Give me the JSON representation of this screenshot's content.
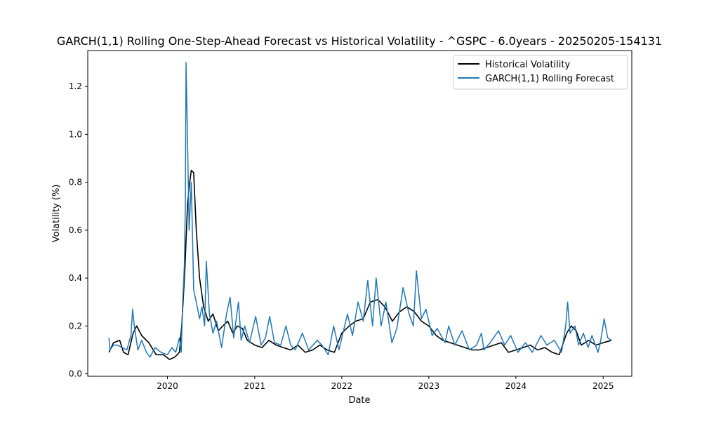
{
  "chart_data": {
    "type": "line",
    "title": "GARCH(1,1) Rolling One-Step-Ahead Forecast vs Historical Volatility - ^GSPC - 6.0years - 20250205-154131",
    "xlabel": "Date",
    "ylabel": "Volatility (%)",
    "xlim": [
      "2019-02-01",
      "2025-05-01"
    ],
    "ylim": [
      -0.01,
      1.35
    ],
    "x_ticks": [
      "2020-01-01",
      "2021-01-01",
      "2022-01-01",
      "2023-01-01",
      "2024-01-01",
      "2025-01-01"
    ],
    "x_tick_labels": [
      "2020",
      "2021",
      "2022",
      "2023",
      "2024",
      "2025"
    ],
    "y_ticks": [
      0.0,
      0.2,
      0.4,
      0.6,
      0.8,
      1.0,
      1.2
    ],
    "y_tick_labels": [
      "0.0",
      "0.2",
      "0.4",
      "0.6",
      "0.8",
      "1.0",
      "1.2"
    ],
    "grid": false,
    "legend": {
      "position": "top-right"
    },
    "series": [
      {
        "name": "Historical Volatility",
        "color": "#000000",
        "x": [
          "2019-05-01",
          "2019-05-20",
          "2019-06-15",
          "2019-07-01",
          "2019-07-20",
          "2019-08-10",
          "2019-08-25",
          "2019-09-15",
          "2019-10-15",
          "2019-11-15",
          "2019-12-15",
          "2020-01-10",
          "2020-02-01",
          "2020-02-20",
          "2020-03-01",
          "2020-03-15",
          "2020-03-25",
          "2020-04-01",
          "2020-04-10",
          "2020-04-20",
          "2020-05-01",
          "2020-05-15",
          "2020-06-01",
          "2020-06-20",
          "2020-07-10",
          "2020-08-01",
          "2020-08-20",
          "2020-09-10",
          "2020-10-01",
          "2020-10-20",
          "2020-11-10",
          "2020-12-01",
          "2021-01-01",
          "2021-02-01",
          "2021-03-01",
          "2021-04-01",
          "2021-05-01",
          "2021-06-01",
          "2021-07-01",
          "2021-08-01",
          "2021-09-01",
          "2021-10-01",
          "2021-11-01",
          "2021-12-01",
          "2022-01-01",
          "2022-02-01",
          "2022-03-01",
          "2022-04-01",
          "2022-05-01",
          "2022-06-01",
          "2022-07-01",
          "2022-08-01",
          "2022-09-01",
          "2022-10-01",
          "2022-11-01",
          "2022-12-01",
          "2023-01-01",
          "2023-02-01",
          "2023-03-01",
          "2023-04-01",
          "2023-05-01",
          "2023-06-01",
          "2023-07-01",
          "2023-08-01",
          "2023-09-01",
          "2023-10-01",
          "2023-11-01",
          "2023-12-01",
          "2024-01-01",
          "2024-02-01",
          "2024-03-01",
          "2024-04-01",
          "2024-05-01",
          "2024-06-01",
          "2024-07-01",
          "2024-08-01",
          "2024-08-20",
          "2024-09-10",
          "2024-10-01",
          "2024-11-01",
          "2024-12-01",
          "2025-01-01",
          "2025-02-05"
        ],
        "y": [
          0.09,
          0.13,
          0.14,
          0.09,
          0.08,
          0.17,
          0.2,
          0.16,
          0.13,
          0.08,
          0.08,
          0.06,
          0.07,
          0.09,
          0.2,
          0.45,
          0.7,
          0.78,
          0.85,
          0.84,
          0.6,
          0.4,
          0.28,
          0.22,
          0.25,
          0.18,
          0.2,
          0.22,
          0.17,
          0.2,
          0.19,
          0.14,
          0.12,
          0.11,
          0.14,
          0.12,
          0.11,
          0.1,
          0.12,
          0.09,
          0.1,
          0.12,
          0.1,
          0.09,
          0.17,
          0.2,
          0.22,
          0.23,
          0.3,
          0.31,
          0.28,
          0.22,
          0.26,
          0.28,
          0.26,
          0.22,
          0.2,
          0.16,
          0.14,
          0.13,
          0.12,
          0.11,
          0.1,
          0.1,
          0.11,
          0.12,
          0.13,
          0.09,
          0.1,
          0.11,
          0.12,
          0.1,
          0.11,
          0.09,
          0.08,
          0.17,
          0.2,
          0.18,
          0.12,
          0.14,
          0.12,
          0.13,
          0.14
        ]
      },
      {
        "name": "GARCH(1,1) Rolling Forecast",
        "color": "#1f77b4",
        "x": [
          "2019-05-01",
          "2019-05-05",
          "2019-05-20",
          "2019-06-05",
          "2019-06-25",
          "2019-07-15",
          "2019-08-01",
          "2019-08-08",
          "2019-08-15",
          "2019-08-30",
          "2019-09-15",
          "2019-10-05",
          "2019-10-20",
          "2019-11-10",
          "2019-12-05",
          "2020-01-01",
          "2020-01-20",
          "2020-02-05",
          "2020-02-20",
          "2020-02-28",
          "2020-03-05",
          "2020-03-12",
          "2020-03-16",
          "2020-03-19",
          "2020-03-25",
          "2020-04-01",
          "2020-04-10",
          "2020-04-20",
          "2020-05-01",
          "2020-05-15",
          "2020-05-25",
          "2020-06-05",
          "2020-06-12",
          "2020-06-25",
          "2020-07-10",
          "2020-07-25",
          "2020-08-15",
          "2020-09-05",
          "2020-09-20",
          "2020-10-05",
          "2020-10-25",
          "2020-11-05",
          "2020-11-20",
          "2020-12-10",
          "2021-01-05",
          "2021-01-28",
          "2021-02-15",
          "2021-03-05",
          "2021-03-25",
          "2021-04-20",
          "2021-05-12",
          "2021-06-01",
          "2021-06-20",
          "2021-07-20",
          "2021-08-15",
          "2021-09-20",
          "2021-10-10",
          "2021-11-05",
          "2021-11-28",
          "2021-12-20",
          "2022-01-25",
          "2022-02-15",
          "2022-03-10",
          "2022-04-01",
          "2022-04-20",
          "2022-05-10",
          "2022-05-25",
          "2022-06-15",
          "2022-07-05",
          "2022-07-30",
          "2022-08-20",
          "2022-09-15",
          "2022-10-10",
          "2022-10-28",
          "2022-11-10",
          "2022-12-01",
          "2022-12-20",
          "2023-01-15",
          "2023-02-05",
          "2023-03-10",
          "2023-03-25",
          "2023-04-20",
          "2023-05-20",
          "2023-06-20",
          "2023-07-20",
          "2023-08-10",
          "2023-08-20",
          "2023-09-15",
          "2023-10-20",
          "2023-11-15",
          "2023-12-10",
          "2024-01-10",
          "2024-02-10",
          "2024-03-10",
          "2024-04-15",
          "2024-05-10",
          "2024-06-10",
          "2024-07-10",
          "2024-07-28",
          "2024-08-05",
          "2024-08-15",
          "2024-09-05",
          "2024-09-20",
          "2024-10-10",
          "2024-10-30",
          "2024-11-15",
          "2024-12-10",
          "2024-12-20",
          "2025-01-05",
          "2025-01-20",
          "2025-02-05"
        ],
        "y": [
          0.15,
          0.1,
          0.12,
          0.12,
          0.11,
          0.1,
          0.16,
          0.27,
          0.2,
          0.1,
          0.14,
          0.09,
          0.07,
          0.11,
          0.09,
          0.08,
          0.11,
          0.09,
          0.15,
          0.09,
          0.3,
          0.45,
          0.7,
          1.3,
          1.0,
          0.6,
          0.8,
          0.35,
          0.3,
          0.23,
          0.28,
          0.2,
          0.47,
          0.25,
          0.17,
          0.22,
          0.11,
          0.25,
          0.32,
          0.15,
          0.3,
          0.14,
          0.2,
          0.13,
          0.24,
          0.12,
          0.15,
          0.24,
          0.13,
          0.12,
          0.2,
          0.12,
          0.1,
          0.17,
          0.1,
          0.14,
          0.12,
          0.08,
          0.2,
          0.1,
          0.25,
          0.16,
          0.3,
          0.22,
          0.39,
          0.2,
          0.4,
          0.2,
          0.3,
          0.13,
          0.19,
          0.36,
          0.25,
          0.2,
          0.43,
          0.23,
          0.27,
          0.16,
          0.19,
          0.13,
          0.2,
          0.12,
          0.18,
          0.1,
          0.12,
          0.17,
          0.1,
          0.13,
          0.18,
          0.12,
          0.16,
          0.09,
          0.13,
          0.09,
          0.16,
          0.12,
          0.14,
          0.09,
          0.2,
          0.3,
          0.17,
          0.2,
          0.12,
          0.17,
          0.11,
          0.16,
          0.09,
          0.13,
          0.23,
          0.15,
          0.14
        ]
      }
    ]
  }
}
